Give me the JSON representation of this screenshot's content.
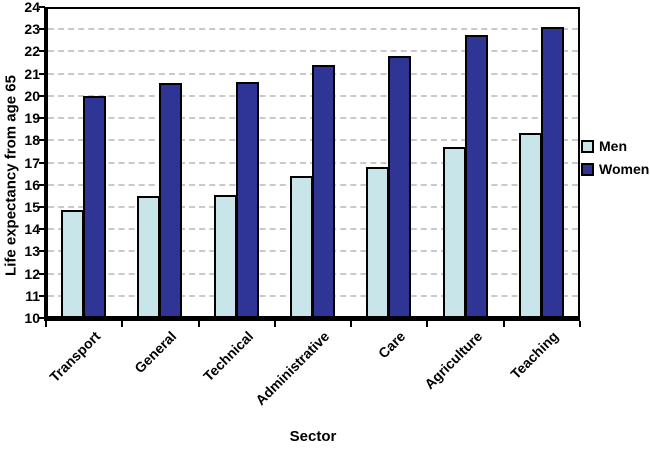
{
  "chart_data": {
    "type": "bar",
    "title": "",
    "xlabel": "Sector",
    "ylabel": "Life expectancy from age 65",
    "ylim": [
      10,
      24
    ],
    "ytick_step": 1,
    "grid": "horizontal-dashed",
    "gridline_color": "#c9c9c9",
    "legend_position": "right",
    "categories": [
      "Transport",
      "General",
      "Technical",
      "Administrative",
      "Care",
      "Agriculture",
      "Teaching"
    ],
    "series": [
      {
        "name": "Men",
        "color": "#c8e5ea",
        "values": [
          14.8,
          15.45,
          15.5,
          16.35,
          16.75,
          17.65,
          18.3
        ]
      },
      {
        "name": "Women",
        "color": "#2f3594",
        "values": [
          19.95,
          20.55,
          20.6,
          21.35,
          21.75,
          22.7,
          23.05
        ]
      }
    ]
  }
}
